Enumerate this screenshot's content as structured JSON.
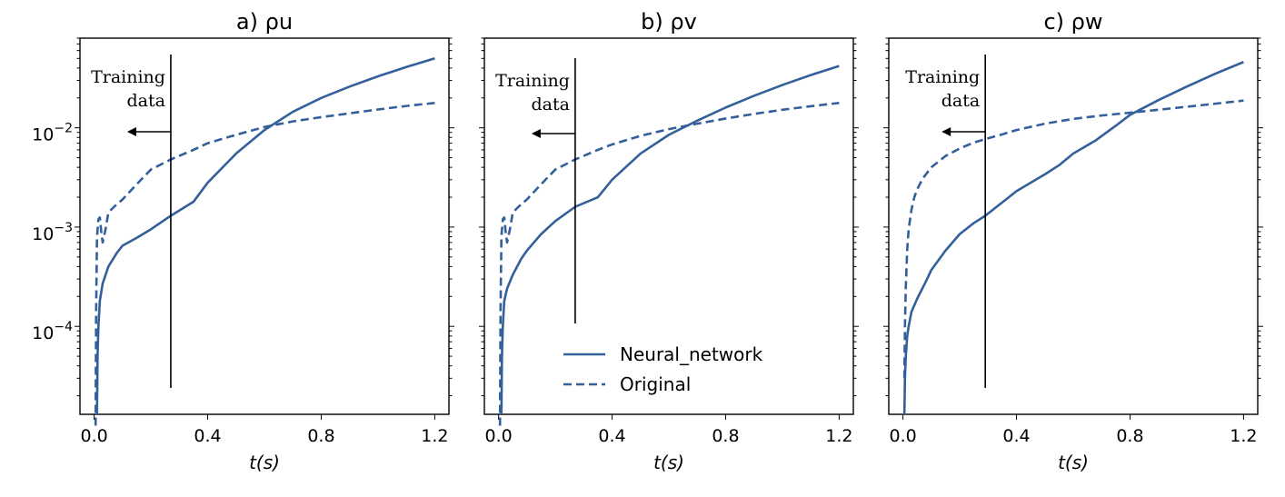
{
  "chart_data": [
    {
      "type": "line",
      "title": "a) ρu",
      "xlabel": "t(s)",
      "ylabel": "",
      "xlim": [
        -0.05,
        1.25
      ],
      "ylim": [
        1.3e-05,
        0.08
      ],
      "yscale": "log",
      "xticks": [
        0.0,
        0.4,
        0.8,
        1.2
      ],
      "xtick_labels": [
        "0.0",
        "0.4",
        "0.8",
        "1.2"
      ],
      "yticks": [
        0.0001,
        0.001,
        0.01
      ],
      "ytick_labels": [
        "10",
        "10",
        "10"
      ],
      "ytick_exponents": [
        "−4",
        "−3",
        "−2"
      ],
      "annotation": {
        "lines": [
          "Training",
          "data"
        ],
        "x": 0.27
      },
      "series": [
        {
          "name": "Neural_network",
          "style": "solid",
          "x": [
            0.01,
            0.012,
            0.015,
            0.02,
            0.03,
            0.05,
            0.08,
            0.1,
            0.15,
            0.2,
            0.27,
            0.35,
            0.4,
            0.5,
            0.6,
            0.7,
            0.8,
            0.9,
            1.0,
            1.1,
            1.2
          ],
          "y": [
            1.3e-05,
            5e-05,
            0.0001,
            0.00018,
            0.00027,
            0.0004,
            0.00055,
            0.00065,
            0.00078,
            0.00095,
            0.0013,
            0.0018,
            0.0028,
            0.0055,
            0.0095,
            0.0145,
            0.02,
            0.026,
            0.033,
            0.041,
            0.05
          ]
        },
        {
          "name": "Original",
          "style": "dashed",
          "x": [
            0.005,
            0.007,
            0.01,
            0.015,
            0.02,
            0.025,
            0.03,
            0.04,
            0.05,
            0.07,
            0.1,
            0.15,
            0.2,
            0.27,
            0.35,
            0.4,
            0.5,
            0.6,
            0.7,
            0.8,
            0.9,
            1.0,
            1.1,
            1.2
          ],
          "y": [
            1e-05,
            0.00015,
            0.0008,
            0.0012,
            0.00125,
            0.0009,
            0.0007,
            0.00095,
            0.0014,
            0.0016,
            0.0019,
            0.0027,
            0.0038,
            0.0048,
            0.006,
            0.007,
            0.0085,
            0.0102,
            0.0116,
            0.0128,
            0.014,
            0.0153,
            0.0166,
            0.0178
          ]
        }
      ]
    },
    {
      "type": "line",
      "title": "b) ρv",
      "xlabel": "t(s)",
      "ylabel": "",
      "xlim": [
        -0.05,
        1.25
      ],
      "ylim": [
        1.3e-05,
        0.08
      ],
      "yscale": "log",
      "xticks": [
        0.0,
        0.4,
        0.8,
        1.2
      ],
      "xtick_labels": [
        "0.0",
        "0.4",
        "0.8",
        "1.2"
      ],
      "yticks": [
        0.0001,
        0.001,
        0.01
      ],
      "annotation": {
        "lines": [
          "Training",
          "data"
        ],
        "x": 0.27
      },
      "legend": {
        "placement": "lower-right",
        "entries": [
          "Neural_network",
          "Original"
        ]
      },
      "series": [
        {
          "name": "Neural_network",
          "style": "solid",
          "x": [
            0.01,
            0.012,
            0.015,
            0.02,
            0.03,
            0.05,
            0.08,
            0.1,
            0.15,
            0.2,
            0.27,
            0.35,
            0.4,
            0.5,
            0.6,
            0.7,
            0.8,
            0.9,
            1.0,
            1.1,
            1.2
          ],
          "y": [
            1.3e-05,
            5e-05,
            0.0001,
            0.00018,
            0.00024,
            0.00033,
            0.00048,
            0.00058,
            0.00085,
            0.00115,
            0.0016,
            0.002,
            0.003,
            0.0055,
            0.0085,
            0.0118,
            0.016,
            0.021,
            0.027,
            0.034,
            0.042
          ]
        },
        {
          "name": "Original",
          "style": "dashed",
          "x": [
            0.005,
            0.007,
            0.01,
            0.015,
            0.02,
            0.025,
            0.03,
            0.04,
            0.05,
            0.07,
            0.1,
            0.15,
            0.2,
            0.27,
            0.35,
            0.4,
            0.5,
            0.6,
            0.7,
            0.8,
            0.9,
            1.0,
            1.1,
            1.2
          ],
          "y": [
            1e-05,
            0.00015,
            0.0008,
            0.0012,
            0.00125,
            0.0009,
            0.0007,
            0.00095,
            0.0014,
            0.0016,
            0.0019,
            0.0027,
            0.0038,
            0.0048,
            0.006,
            0.0068,
            0.0083,
            0.0097,
            0.011,
            0.0124,
            0.0138,
            0.0152,
            0.0165,
            0.0178
          ]
        }
      ]
    },
    {
      "type": "line",
      "title": "c) ρw",
      "xlabel": "t(s)",
      "ylabel": "",
      "xlim": [
        -0.05,
        1.25
      ],
      "ylim": [
        1.3e-05,
        0.08
      ],
      "yscale": "log",
      "xticks": [
        0.0,
        0.4,
        0.8,
        1.2
      ],
      "xtick_labels": [
        "0.0",
        "0.4",
        "0.8",
        "1.2"
      ],
      "yticks": [
        0.0001,
        0.001,
        0.01
      ],
      "annotation": {
        "lines": [
          "Training",
          "data"
        ],
        "x": 0.29
      },
      "series": [
        {
          "name": "Neural_network",
          "style": "solid",
          "x": [
            0.005,
            0.007,
            0.01,
            0.015,
            0.02,
            0.03,
            0.05,
            0.08,
            0.1,
            0.15,
            0.2,
            0.25,
            0.29,
            0.33,
            0.4,
            0.5,
            0.55,
            0.6,
            0.68,
            0.75,
            0.8,
            0.9,
            1.0,
            1.1,
            1.2
          ],
          "y": [
            1.3e-05,
            3e-05,
            5e-05,
            8e-05,
            0.0001,
            0.00014,
            0.00019,
            0.00028,
            0.00037,
            0.00058,
            0.00085,
            0.0011,
            0.0013,
            0.0016,
            0.0023,
            0.0034,
            0.0042,
            0.0055,
            0.0075,
            0.0105,
            0.0135,
            0.019,
            0.026,
            0.035,
            0.046
          ]
        },
        {
          "name": "Original",
          "style": "dashed",
          "x": [
            0.005,
            0.007,
            0.01,
            0.015,
            0.02,
            0.03,
            0.04,
            0.05,
            0.07,
            0.1,
            0.15,
            0.2,
            0.25,
            0.29,
            0.35,
            0.4,
            0.5,
            0.6,
            0.7,
            0.8,
            0.9,
            1.0,
            1.1,
            1.2
          ],
          "y": [
            3e-05,
            0.0001,
            0.00025,
            0.0006,
            0.00095,
            0.0015,
            0.002,
            0.0024,
            0.0031,
            0.004,
            0.0052,
            0.0062,
            0.0071,
            0.0077,
            0.0086,
            0.0095,
            0.011,
            0.0123,
            0.0133,
            0.0142,
            0.0152,
            0.0163,
            0.0175,
            0.0188
          ]
        }
      ]
    }
  ],
  "colors": {
    "line": "#33609a",
    "axis": "#000000",
    "background": "#ffffff"
  }
}
